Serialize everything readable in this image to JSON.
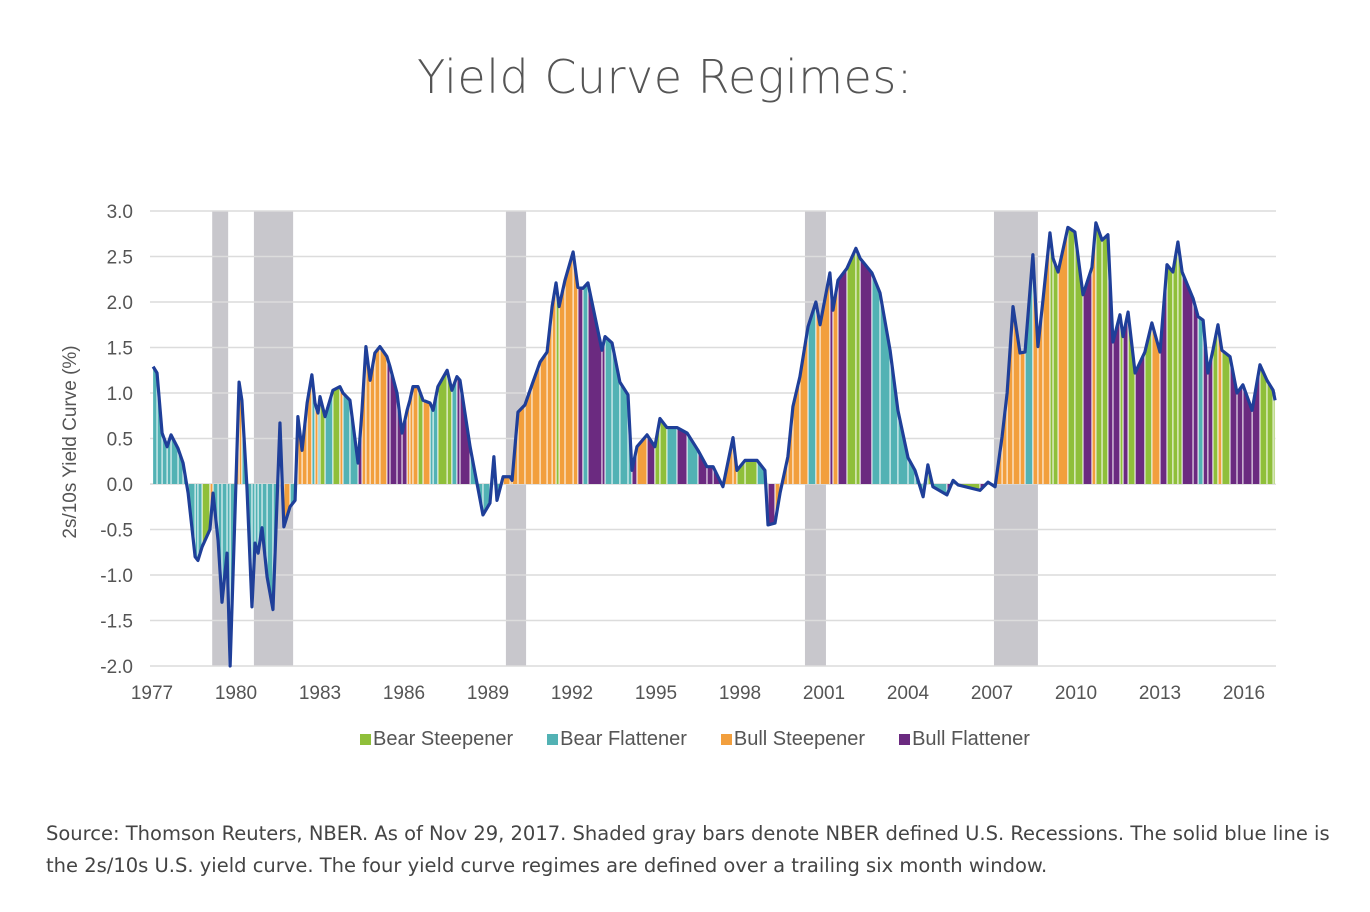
{
  "title": "Yield Curve Regimes:",
  "source": "Source: Thomson Reuters, NBER. As of Nov 29, 2017. Shaded gray bars denote NBER defined U.S. Recessions. The solid blue line is the 2s/10s U.S. yield curve. The four yield curve regimes are defined over a trailing six month window.",
  "chart_data": {
    "type": "area",
    "title": "Yield Curve Regimes:",
    "ylabel": "2s/10s Yield Curve (%)",
    "xlabel": "",
    "ylim": [
      -2.0,
      3.0
    ],
    "xlim": [
      1977,
      2017.15
    ],
    "yticks": [
      "3.0",
      "2.5",
      "2.0",
      "1.5",
      "1.0",
      "0.5",
      "0.0",
      "-0.5",
      "-1.0",
      "-1.5",
      "-2.0"
    ],
    "xticks": [
      "1977",
      "1980",
      "1983",
      "1986",
      "1989",
      "1992",
      "1995",
      "1998",
      "2001",
      "2004",
      "2007",
      "2010",
      "2013",
      "2016"
    ],
    "grid": true,
    "legend_position": "bottom",
    "line_color": "#1f3f99",
    "recession_color": "#c8c7cc",
    "regimes": [
      {
        "code": "BS",
        "name": "Bear Steepener",
        "color": "#8fbf3a"
      },
      {
        "code": "BF",
        "name": "Bear Flattener",
        "color": "#52b2b4"
      },
      {
        "code": "US",
        "name": "Bull Steepener",
        "color": "#f29f3d"
      },
      {
        "code": "UF",
        "name": "Bull Flattener",
        "color": "#6b2a80"
      }
    ],
    "recessions": [
      [
        1979.15,
        1979.72
      ],
      [
        1980.64,
        1982.04
      ],
      [
        1989.64,
        1990.36
      ],
      [
        2000.32,
        2001.07
      ],
      [
        2007.07,
        2008.64
      ]
    ],
    "series": [
      [
        1977.04,
        1.29,
        "BF"
      ],
      [
        1977.18,
        1.22,
        "BF"
      ],
      [
        1977.36,
        0.56,
        "BF"
      ],
      [
        1977.54,
        0.41,
        "BF"
      ],
      [
        1977.68,
        0.54,
        "BF"
      ],
      [
        1977.93,
        0.39,
        "BF"
      ],
      [
        1978.11,
        0.23,
        "BF"
      ],
      [
        1978.29,
        -0.1,
        "BF"
      ],
      [
        1978.54,
        -0.8,
        "BF"
      ],
      [
        1978.64,
        -0.84,
        "BF"
      ],
      [
        1978.79,
        -0.69,
        "BS"
      ],
      [
        1979.07,
        -0.5,
        "US"
      ],
      [
        1979.18,
        -0.1,
        "BF"
      ],
      [
        1979.36,
        -0.62,
        "BF"
      ],
      [
        1979.5,
        -1.3,
        "BF"
      ],
      [
        1979.68,
        -0.76,
        "BF"
      ],
      [
        1979.79,
        -2.0,
        "BF"
      ],
      [
        1979.96,
        -0.36,
        "US"
      ],
      [
        1980.11,
        1.12,
        "US"
      ],
      [
        1980.21,
        0.92,
        "BF"
      ],
      [
        1980.39,
        -0.03,
        "BF"
      ],
      [
        1980.57,
        -1.35,
        "BF"
      ],
      [
        1980.68,
        -0.65,
        "BF"
      ],
      [
        1980.79,
        -0.76,
        "BF"
      ],
      [
        1980.93,
        -0.48,
        "BF"
      ],
      [
        1981.11,
        -1.02,
        "BF"
      ],
      [
        1981.32,
        -1.38,
        "BF"
      ],
      [
        1981.57,
        0.67,
        "US"
      ],
      [
        1981.71,
        -0.47,
        "US"
      ],
      [
        1981.93,
        -0.25,
        "BF"
      ],
      [
        1982.11,
        -0.18,
        "US"
      ],
      [
        1982.21,
        0.74,
        "US"
      ],
      [
        1982.36,
        0.37,
        "US"
      ],
      [
        1982.54,
        0.89,
        "US"
      ],
      [
        1982.71,
        1.2,
        "BF"
      ],
      [
        1982.82,
        0.89,
        "US"
      ],
      [
        1982.93,
        0.78,
        "BF"
      ],
      [
        1983.0,
        0.96,
        "BS"
      ],
      [
        1983.18,
        0.74,
        "BF"
      ],
      [
        1983.46,
        1.03,
        "BS"
      ],
      [
        1983.71,
        1.07,
        "US"
      ],
      [
        1983.82,
        1.0,
        "BF"
      ],
      [
        1984.07,
        0.92,
        "BF"
      ],
      [
        1984.36,
        0.23,
        "UF"
      ],
      [
        1984.5,
        0.81,
        "US"
      ],
      [
        1984.64,
        1.51,
        "US"
      ],
      [
        1984.79,
        1.14,
        "US"
      ],
      [
        1984.96,
        1.44,
        "US"
      ],
      [
        1985.14,
        1.51,
        "US"
      ],
      [
        1985.39,
        1.4,
        "UF"
      ],
      [
        1985.5,
        1.29,
        "UF"
      ],
      [
        1985.75,
        1.0,
        "UF"
      ],
      [
        1985.93,
        0.56,
        "UF"
      ],
      [
        1986.11,
        0.81,
        "US"
      ],
      [
        1986.21,
        0.92,
        "US"
      ],
      [
        1986.32,
        1.07,
        "US"
      ],
      [
        1986.5,
        1.07,
        "BS"
      ],
      [
        1986.68,
        0.92,
        "US"
      ],
      [
        1986.93,
        0.89,
        "BF"
      ],
      [
        1987.04,
        0.81,
        "BF"
      ],
      [
        1987.21,
        1.07,
        "BS"
      ],
      [
        1987.54,
        1.25,
        "BS"
      ],
      [
        1987.71,
        1.03,
        "BF"
      ],
      [
        1987.89,
        1.18,
        "UF"
      ],
      [
        1988.0,
        1.14,
        "UF"
      ],
      [
        1988.36,
        0.41,
        "BF"
      ],
      [
        1988.82,
        -0.34,
        "BF"
      ],
      [
        1989.07,
        -0.21,
        "BF"
      ],
      [
        1989.21,
        0.3,
        "BF"
      ],
      [
        1989.32,
        -0.18,
        "BF"
      ],
      [
        1989.54,
        0.08,
        "US"
      ],
      [
        1989.79,
        0.08,
        "US"
      ],
      [
        1989.86,
        0.04,
        "US"
      ],
      [
        1990.07,
        0.79,
        "US"
      ],
      [
        1990.32,
        0.87,
        "US"
      ],
      [
        1990.57,
        1.09,
        "US"
      ],
      [
        1990.86,
        1.34,
        "US"
      ],
      [
        1991.11,
        1.45,
        "US"
      ],
      [
        1991.29,
        1.95,
        "US"
      ],
      [
        1991.43,
        2.21,
        "BS"
      ],
      [
        1991.54,
        1.95,
        "US"
      ],
      [
        1991.75,
        2.24,
        "US"
      ],
      [
        1992.04,
        2.55,
        "US"
      ],
      [
        1992.21,
        2.16,
        "UF"
      ],
      [
        1992.39,
        2.15,
        "BF"
      ],
      [
        1992.57,
        2.21,
        "UF"
      ],
      [
        1993.07,
        1.47,
        "UF"
      ],
      [
        1993.18,
        1.62,
        "BF"
      ],
      [
        1993.43,
        1.55,
        "BF"
      ],
      [
        1993.71,
        1.12,
        "BF"
      ],
      [
        1994.0,
        0.98,
        "BF"
      ],
      [
        1994.14,
        0.15,
        "UF"
      ],
      [
        1994.32,
        0.41,
        "US"
      ],
      [
        1994.68,
        0.54,
        "UF"
      ],
      [
        1994.96,
        0.41,
        "BS"
      ],
      [
        1995.14,
        0.72,
        "BS"
      ],
      [
        1995.39,
        0.62,
        "BF"
      ],
      [
        1995.75,
        0.62,
        "UF"
      ],
      [
        1996.11,
        0.56,
        "BF"
      ],
      [
        1996.5,
        0.37,
        "UF"
      ],
      [
        1996.82,
        0.19,
        "UF"
      ],
      [
        1997.04,
        0.19,
        "UF"
      ],
      [
        1997.39,
        -0.03,
        "US"
      ],
      [
        1997.75,
        0.51,
        "US"
      ],
      [
        1997.89,
        0.15,
        "BS"
      ],
      [
        1998.18,
        0.26,
        "BS"
      ],
      [
        1998.61,
        0.26,
        "BF"
      ],
      [
        1998.89,
        0.15,
        "BF"
      ],
      [
        1999.0,
        -0.45,
        "UF"
      ],
      [
        1999.25,
        -0.43,
        "US"
      ],
      [
        1999.43,
        -0.1,
        "US"
      ],
      [
        1999.71,
        0.3,
        "US"
      ],
      [
        1999.89,
        0.85,
        "US"
      ],
      [
        2000.14,
        1.18,
        "US"
      ],
      [
        2000.43,
        1.73,
        "BF"
      ],
      [
        2000.71,
        2.0,
        "US"
      ],
      [
        2000.86,
        1.75,
        "US"
      ],
      [
        2001.21,
        2.32,
        "UF"
      ],
      [
        2001.32,
        1.91,
        "US"
      ],
      [
        2001.5,
        2.24,
        "UF"
      ],
      [
        2001.82,
        2.37,
        "BS"
      ],
      [
        2002.14,
        2.59,
        "BS"
      ],
      [
        2002.29,
        2.48,
        "UF"
      ],
      [
        2002.71,
        2.32,
        "BF"
      ],
      [
        2003.0,
        2.1,
        "BF"
      ],
      [
        2003.36,
        1.47,
        "BF"
      ],
      [
        2003.64,
        0.81,
        "BF"
      ],
      [
        2004.0,
        0.29,
        "BF"
      ],
      [
        2004.25,
        0.15,
        "BF"
      ],
      [
        2004.54,
        -0.14,
        "BF"
      ],
      [
        2004.71,
        0.21,
        "BS"
      ],
      [
        2004.89,
        -0.03,
        "BF"
      ],
      [
        2005.39,
        -0.12,
        "UF"
      ],
      [
        2005.61,
        0.04,
        "BF"
      ],
      [
        2005.79,
        -0.01,
        "BS"
      ],
      [
        2006.57,
        -0.07,
        "UF"
      ],
      [
        2006.86,
        0.02,
        "BF"
      ],
      [
        2007.11,
        -0.03,
        "US"
      ],
      [
        2007.36,
        0.52,
        "US"
      ],
      [
        2007.54,
        1.0,
        "US"
      ],
      [
        2007.75,
        1.95,
        "US"
      ],
      [
        2008.0,
        1.44,
        "US"
      ],
      [
        2008.18,
        1.45,
        "BF"
      ],
      [
        2008.46,
        2.52,
        "US"
      ],
      [
        2008.64,
        1.51,
        "US"
      ],
      [
        2008.82,
        2.02,
        "US"
      ],
      [
        2009.07,
        2.76,
        "BS"
      ],
      [
        2009.18,
        2.48,
        "BS"
      ],
      [
        2009.36,
        2.33,
        "US"
      ],
      [
        2009.71,
        2.82,
        "BS"
      ],
      [
        2009.96,
        2.77,
        "BS"
      ],
      [
        2010.25,
        2.08,
        "UF"
      ],
      [
        2010.57,
        2.38,
        "US"
      ],
      [
        2010.71,
        2.87,
        "BS"
      ],
      [
        2010.93,
        2.68,
        "BS"
      ],
      [
        2011.14,
        2.74,
        "UF"
      ],
      [
        2011.32,
        1.56,
        "UF"
      ],
      [
        2011.57,
        1.86,
        "BS"
      ],
      [
        2011.68,
        1.62,
        "UF"
      ],
      [
        2011.86,
        1.89,
        "BS"
      ],
      [
        2012.11,
        1.22,
        "UF"
      ],
      [
        2012.46,
        1.45,
        "BS"
      ],
      [
        2012.71,
        1.77,
        "US"
      ],
      [
        2013.0,
        1.45,
        "UF"
      ],
      [
        2013.25,
        2.41,
        "BS"
      ],
      [
        2013.46,
        2.33,
        "BS"
      ],
      [
        2013.64,
        2.66,
        "BS"
      ],
      [
        2013.79,
        2.33,
        "UF"
      ],
      [
        2014.18,
        2.04,
        "UF"
      ],
      [
        2014.36,
        1.84,
        "BF"
      ],
      [
        2014.54,
        1.8,
        "UF"
      ],
      [
        2014.71,
        1.22,
        "UF"
      ],
      [
        2014.89,
        1.47,
        "BS"
      ],
      [
        2015.07,
        1.75,
        "US"
      ],
      [
        2015.21,
        1.47,
        "BS"
      ],
      [
        2015.5,
        1.4,
        "UF"
      ],
      [
        2015.75,
        1.0,
        "UF"
      ],
      [
        2015.96,
        1.09,
        "UF"
      ],
      [
        2016.29,
        0.81,
        "UF"
      ],
      [
        2016.57,
        1.31,
        "BS"
      ],
      [
        2016.82,
        1.14,
        "BS"
      ],
      [
        2017.04,
        1.03,
        "BS"
      ],
      [
        2017.11,
        0.92,
        "UF"
      ]
    ]
  }
}
